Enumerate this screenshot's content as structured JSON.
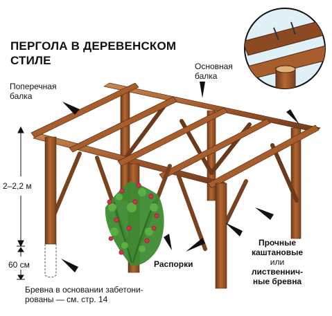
{
  "title": {
    "line1": "ПЕРГОЛА В ДЕРЕВЕНСКОМ",
    "line2": "СТИЛЕ"
  },
  "labels": {
    "cross_beam": [
      "Поперечная",
      "балка"
    ],
    "main_beam": [
      "Основная",
      "балка"
    ],
    "height": "2–2,2 м",
    "depth": "60 см",
    "braces": "Распорки",
    "logs": [
      "Прочные",
      "каштановые",
      "или",
      "лиственнич-",
      "ные бревна"
    ],
    "footnote": [
      "Бревна в основании забетони-",
      "рованы — см. стр. 14"
    ]
  },
  "colors": {
    "wood_dark": "#6b3a1c",
    "wood_mid": "#a2582a",
    "wood_light": "#c98a52",
    "leaf": "#4c9a3a",
    "flower": "#d2324a",
    "arrow": "#111111",
    "inset_bg": "#dff0f6"
  }
}
